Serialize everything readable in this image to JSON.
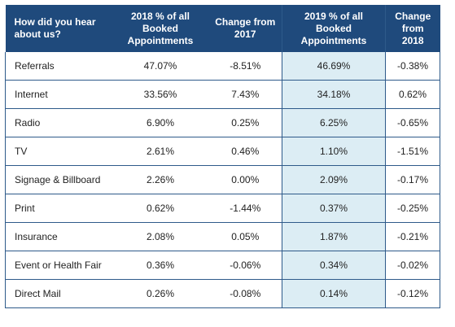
{
  "chart_data": {
    "type": "table",
    "columns": [
      "How did you hear about us?",
      "2018 % of all Booked Appointments",
      "Change from 2017",
      "2019 % of all Booked Appointments",
      "Change from 2018"
    ],
    "rows": [
      {
        "source": "Referrals",
        "pct_2018": "47.07%",
        "chg_2017": "-8.51%",
        "pct_2019": "46.69%",
        "chg_2018": "-0.38%"
      },
      {
        "source": "Internet",
        "pct_2018": "33.56%",
        "chg_2017": "7.43%",
        "pct_2019": "34.18%",
        "chg_2018": "0.62%"
      },
      {
        "source": "Radio",
        "pct_2018": "6.90%",
        "chg_2017": "0.25%",
        "pct_2019": "6.25%",
        "chg_2018": "-0.65%"
      },
      {
        "source": "TV",
        "pct_2018": "2.61%",
        "chg_2017": "0.46%",
        "pct_2019": "1.10%",
        "chg_2018": "-1.51%"
      },
      {
        "source": "Signage & Billboard",
        "pct_2018": "2.26%",
        "chg_2017": "0.00%",
        "pct_2019": "2.09%",
        "chg_2018": "-0.17%"
      },
      {
        "source": "Print",
        "pct_2018": "0.62%",
        "chg_2017": "-1.44%",
        "pct_2019": "0.37%",
        "chg_2018": "-0.25%"
      },
      {
        "source": "Insurance",
        "pct_2018": "2.08%",
        "chg_2017": "0.05%",
        "pct_2019": "1.87%",
        "chg_2018": "-0.21%"
      },
      {
        "source": "Event or Health Fair",
        "pct_2018": "0.36%",
        "chg_2017": "-0.06%",
        "pct_2019": "0.34%",
        "chg_2018": "-0.02%"
      },
      {
        "source": "Direct Mail",
        "pct_2018": "0.26%",
        "chg_2017": "-0.08%",
        "pct_2019": "0.14%",
        "chg_2018": "-0.12%"
      }
    ]
  },
  "colors": {
    "header_bg": "#1f4a7c",
    "header_text": "#ffffff",
    "highlight_col": "#dcedf4",
    "negative": "#d0262b",
    "positive": "#7fac4c",
    "border": "#2e5a8a"
  }
}
